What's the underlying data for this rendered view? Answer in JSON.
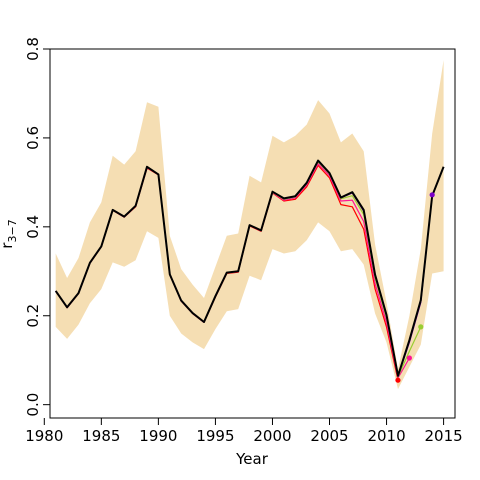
{
  "chart_data": {
    "type": "line",
    "title": "",
    "xlabel": "Year",
    "ylabel": "r",
    "ylabel_subscript": "3−7",
    "xlim": [
      1980.5,
      2016.0
    ],
    "ylim": [
      -0.03,
      0.8
    ],
    "x_ticks": [
      1980,
      1985,
      1990,
      1995,
      2000,
      2005,
      2010,
      2015
    ],
    "x_tick_labels": [
      "1980",
      "1985",
      "1990",
      "1995",
      "2000",
      "2005",
      "2010",
      "2015"
    ],
    "y_ticks": [
      0.0,
      0.2,
      0.4,
      0.6,
      0.8
    ],
    "y_tick_labels": [
      "0.0",
      "0.2",
      "0.4",
      "0.6",
      "0.8"
    ],
    "grid": false,
    "legend": null,
    "band": {
      "color": "#f5deb3",
      "x": [
        1981,
        1982,
        1983,
        1984,
        1985,
        1986,
        1987,
        1988,
        1989,
        1990,
        1991,
        1992,
        1993,
        1994,
        1995,
        1996,
        1997,
        1998,
        1999,
        2000,
        2001,
        2002,
        2003,
        2004,
        2005,
        2006,
        2007,
        2008,
        2009,
        2010,
        2011,
        2012,
        2013,
        2014,
        2015
      ],
      "upper": [
        0.34,
        0.285,
        0.33,
        0.41,
        0.455,
        0.56,
        0.54,
        0.57,
        0.68,
        0.67,
        0.38,
        0.305,
        0.27,
        0.24,
        0.31,
        0.38,
        0.385,
        0.515,
        0.5,
        0.605,
        0.59,
        0.605,
        0.63,
        0.685,
        0.655,
        0.59,
        0.61,
        0.57,
        0.36,
        0.23,
        0.08,
        0.2,
        0.35,
        0.61,
        0.775
      ],
      "lower": [
        0.175,
        0.148,
        0.18,
        0.228,
        0.26,
        0.32,
        0.31,
        0.325,
        0.39,
        0.375,
        0.2,
        0.16,
        0.14,
        0.125,
        0.17,
        0.21,
        0.215,
        0.29,
        0.28,
        0.35,
        0.34,
        0.345,
        0.37,
        0.41,
        0.39,
        0.345,
        0.35,
        0.315,
        0.205,
        0.14,
        0.035,
        0.085,
        0.135,
        0.295,
        0.3
      ]
    },
    "series": [
      {
        "color": "#ff0000",
        "x": [
          1981,
          1982,
          1983,
          1984,
          1985,
          1986,
          1987,
          1988,
          1989,
          1990,
          1991,
          1992,
          1993,
          1994,
          1995,
          1996,
          1997,
          1998,
          1999,
          2000,
          2001,
          2002,
          2003,
          2004,
          2005,
          2006,
          2007,
          2008,
          2009,
          2010,
          2011
        ],
        "values": [
          0.255,
          0.218,
          0.25,
          0.318,
          0.355,
          0.437,
          0.422,
          0.445,
          0.532,
          0.517,
          0.292,
          0.233,
          0.205,
          0.185,
          0.242,
          0.295,
          0.298,
          0.402,
          0.39,
          0.476,
          0.458,
          0.462,
          0.49,
          0.538,
          0.51,
          0.45,
          0.445,
          0.395,
          0.26,
          0.175,
          0.055
        ],
        "endpoint": true
      },
      {
        "color": "#ff1493",
        "x": [
          1981,
          1982,
          1983,
          1984,
          1985,
          1986,
          1987,
          1988,
          1989,
          1990,
          1991,
          1992,
          1993,
          1994,
          1995,
          1996,
          1997,
          1998,
          1999,
          2000,
          2001,
          2002,
          2003,
          2004,
          2005,
          2006,
          2007,
          2008,
          2009,
          2010,
          2011,
          2012
        ],
        "values": [
          0.255,
          0.218,
          0.25,
          0.318,
          0.355,
          0.437,
          0.422,
          0.446,
          0.533,
          0.518,
          0.292,
          0.233,
          0.205,
          0.185,
          0.243,
          0.296,
          0.299,
          0.403,
          0.391,
          0.477,
          0.46,
          0.465,
          0.494,
          0.542,
          0.515,
          0.458,
          0.46,
          0.412,
          0.272,
          0.185,
          0.06,
          0.105
        ],
        "endpoint": true
      },
      {
        "color": "#9acd32",
        "x": [
          1981,
          1982,
          1983,
          1984,
          1985,
          1986,
          1987,
          1988,
          1989,
          1990,
          1991,
          1992,
          1993,
          1994,
          1995,
          1996,
          1997,
          1998,
          1999,
          2000,
          2001,
          2002,
          2003,
          2004,
          2005,
          2006,
          2007,
          2008,
          2009,
          2010,
          2011,
          2012,
          2013
        ],
        "values": [
          0.256,
          0.219,
          0.251,
          0.319,
          0.356,
          0.437,
          0.423,
          0.447,
          0.534,
          0.518,
          0.292,
          0.234,
          0.206,
          0.186,
          0.244,
          0.296,
          0.3,
          0.404,
          0.392,
          0.478,
          0.462,
          0.467,
          0.497,
          0.546,
          0.519,
          0.463,
          0.47,
          0.428,
          0.284,
          0.195,
          0.063,
          0.12,
          0.175
        ],
        "endpoint": true
      },
      {
        "color": "#7b00c8",
        "x": [
          1981,
          1982,
          1983,
          1984,
          1985,
          1986,
          1987,
          1988,
          1989,
          1990,
          1991,
          1992,
          1993,
          1994,
          1995,
          1996,
          1997,
          1998,
          1999,
          2000,
          2001,
          2002,
          2003,
          2004,
          2005,
          2006,
          2007,
          2008,
          2009,
          2010,
          2011,
          2012,
          2013,
          2014
        ],
        "values": [
          0.256,
          0.219,
          0.251,
          0.319,
          0.356,
          0.438,
          0.423,
          0.447,
          0.535,
          0.518,
          0.293,
          0.234,
          0.206,
          0.186,
          0.244,
          0.297,
          0.3,
          0.404,
          0.392,
          0.479,
          0.463,
          0.468,
          0.498,
          0.548,
          0.52,
          0.465,
          0.476,
          0.435,
          0.29,
          0.2,
          0.064,
          0.14,
          0.23,
          0.472
        ],
        "endpoint": true
      },
      {
        "color": "#000000",
        "x": [
          1981,
          1982,
          1983,
          1984,
          1985,
          1986,
          1987,
          1988,
          1989,
          1990,
          1991,
          1992,
          1993,
          1994,
          1995,
          1996,
          1997,
          1998,
          1999,
          2000,
          2001,
          2002,
          2003,
          2004,
          2005,
          2006,
          2007,
          2008,
          2009,
          2010,
          2011,
          2012,
          2013,
          2014,
          2015
        ],
        "values": [
          0.256,
          0.219,
          0.251,
          0.319,
          0.356,
          0.438,
          0.423,
          0.447,
          0.535,
          0.518,
          0.293,
          0.234,
          0.206,
          0.186,
          0.244,
          0.297,
          0.3,
          0.404,
          0.392,
          0.479,
          0.464,
          0.469,
          0.499,
          0.549,
          0.521,
          0.466,
          0.478,
          0.438,
          0.292,
          0.202,
          0.065,
          0.145,
          0.235,
          0.47,
          0.535
        ],
        "endpoint": false
      }
    ]
  }
}
